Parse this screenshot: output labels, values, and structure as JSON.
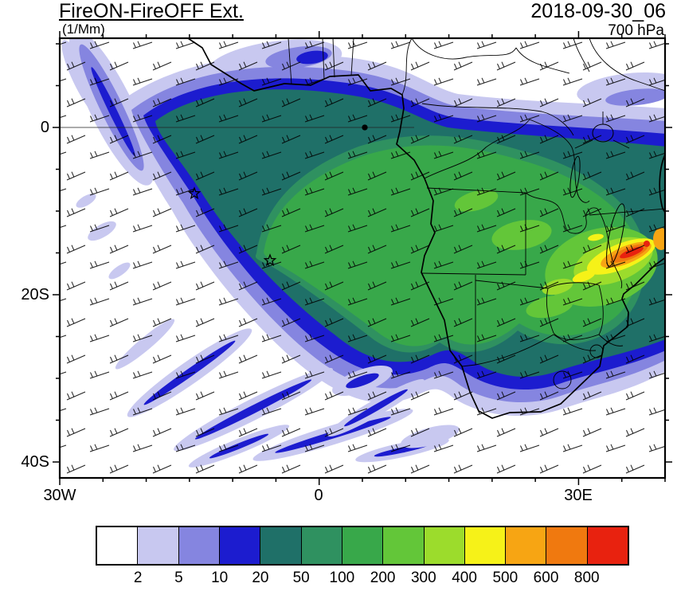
{
  "header": {
    "title": "FireON-FireOFF Ext.",
    "units_label": "(1/Mm)",
    "datetime": "2018-09-30_06",
    "level": "700 hPa"
  },
  "chart_data": {
    "type": "heatmap",
    "subtype": "filled-contour-map-with-wind-barbs",
    "title": "FireON-FireOFF Ext.",
    "units": "1/Mm",
    "pressure_level": "700 hPa",
    "valid_time": "2018-09-30_06",
    "x_axis": {
      "ticks": [
        "30W",
        "0",
        "30E"
      ],
      "range_deg": [
        -30,
        40
      ]
    },
    "y_axis": {
      "ticks": [
        "0",
        "20S",
        "40S"
      ],
      "range_deg": [
        11,
        -42
      ]
    },
    "colorbar": {
      "boundary_labels": [
        "2",
        "5",
        "10",
        "20",
        "50",
        "100",
        "200",
        "300",
        "400",
        "500",
        "600",
        "800"
      ],
      "colors": [
        "#ffffff",
        "#c8c8f0",
        "#8585e0",
        "#1c1ccf",
        "#1f7068",
        "#2f9160",
        "#38a84a",
        "#63c639",
        "#9cdc2c",
        "#f6f218",
        "#f7a513",
        "#f0790f",
        "#e8220f"
      ]
    },
    "overlays": [
      "wind-barbs",
      "coastlines",
      "country-borders"
    ],
    "markers": [
      {
        "type": "star",
        "lon": -14.4,
        "lat": -7.9
      },
      {
        "type": "star",
        "lon": -5.7,
        "lat": -15.9
      },
      {
        "type": "dot",
        "lon": 6.5,
        "lat": 0.2
      }
    ]
  }
}
